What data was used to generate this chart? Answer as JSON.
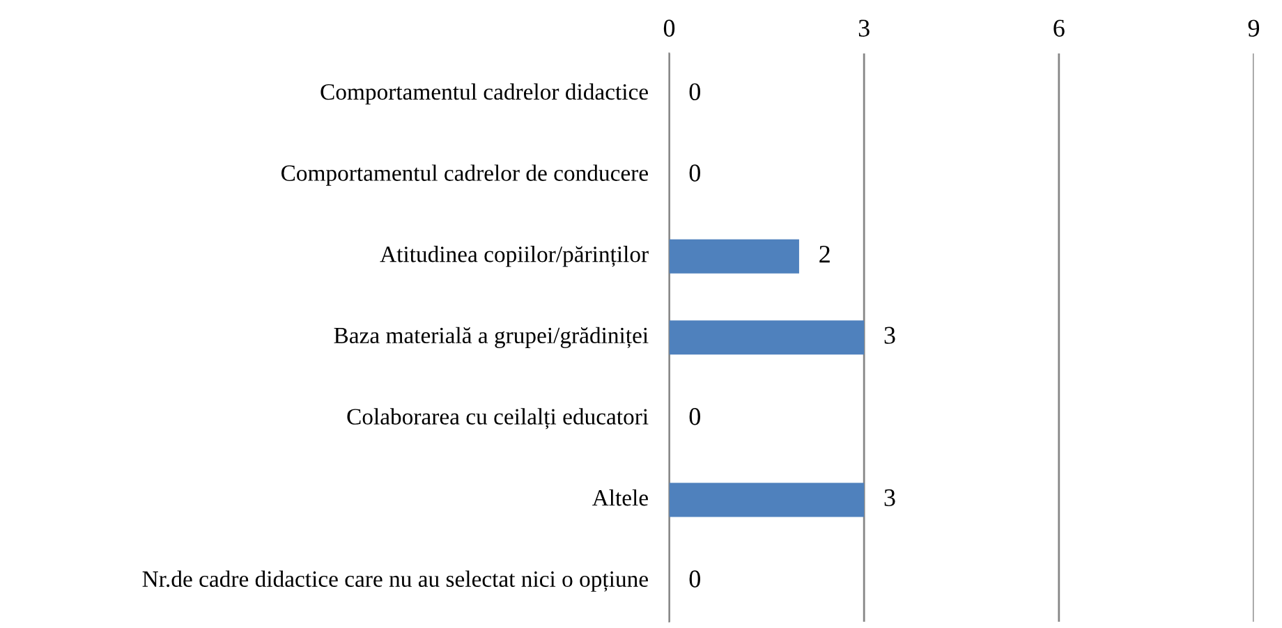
{
  "chart_data": {
    "type": "bar",
    "orientation": "horizontal",
    "categories": [
      "Comportamentul cadrelor didactice",
      "Comportamentul cadrelor de conducere",
      "Atitudinea copiilor/părinților",
      "Baza materială a grupei/grădiniței",
      "Colaborarea cu ceilalți educatori",
      "Altele",
      "Nr.de cadre didactice care nu au selectat nici o opțiune"
    ],
    "values": [
      0,
      0,
      2,
      3,
      0,
      3,
      0
    ],
    "color": "#4f81bd",
    "xlim": [
      0,
      9
    ],
    "xticks": [
      0,
      3,
      6,
      9
    ],
    "grid": "x",
    "data_labels": true
  }
}
